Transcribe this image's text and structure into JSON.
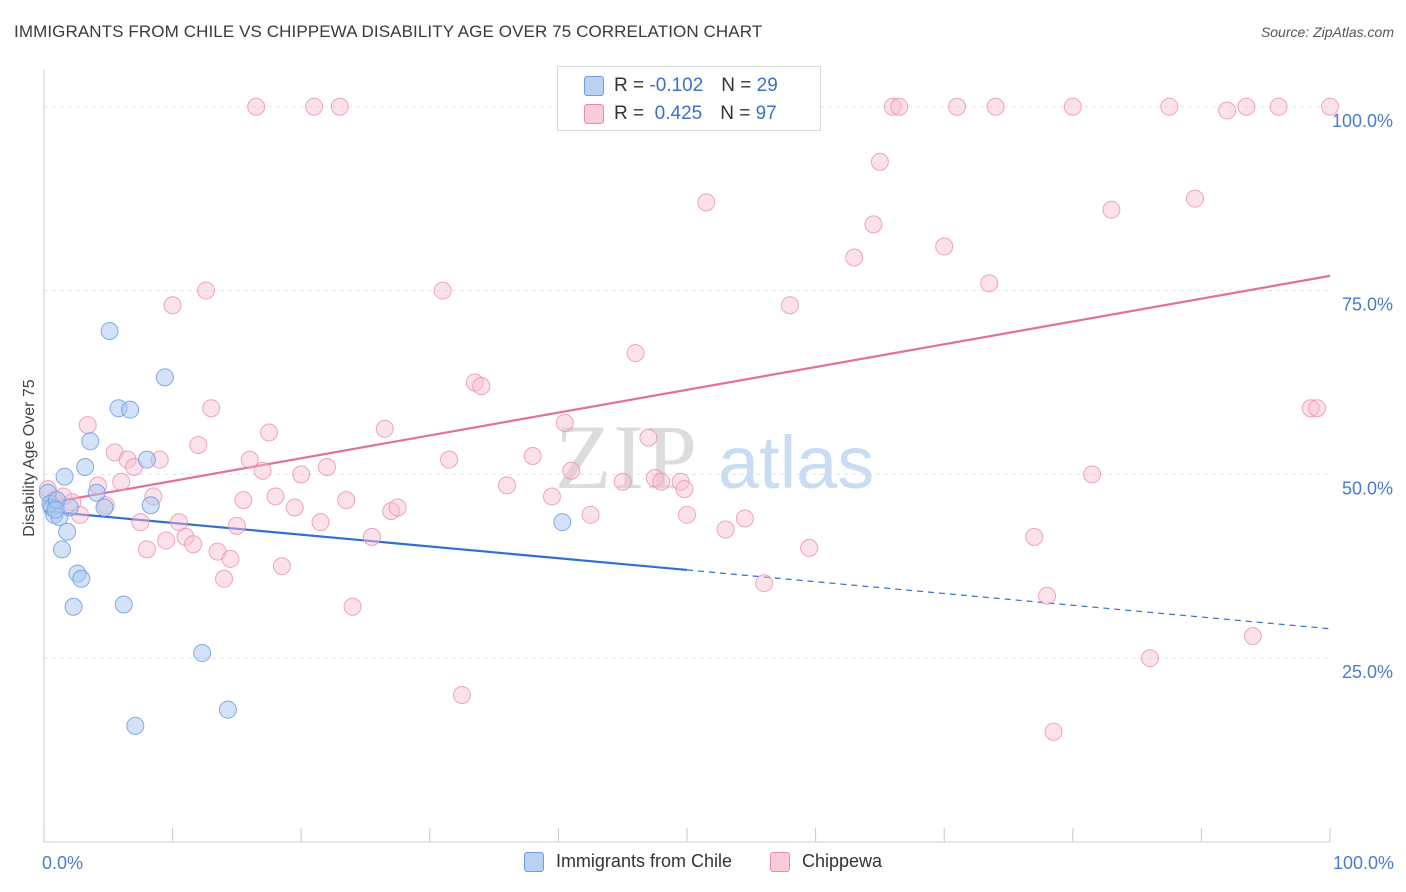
{
  "header": {
    "title": "IMMIGRANTS FROM CHILE VS CHIPPEWA DISABILITY AGE OVER 75 CORRELATION CHART",
    "source": "Source: ZipAtlas.com"
  },
  "legend": {
    "rows": [
      {
        "r_label": "R =",
        "r_value": "-0.102",
        "n_label": "N =",
        "n_value": "29"
      },
      {
        "r_label": "R =",
        "r_value": "0.425",
        "n_label": "N =",
        "n_value": "97"
      }
    ]
  },
  "bottom_legend": [
    "Immigrants from Chile",
    "Chippewa"
  ],
  "colors": {
    "blue_fill": "#a9c6f1",
    "blue_stroke": "#6e9fe0",
    "blue_line": "#2f6fd1",
    "pink_fill": "#f7bfd0",
    "pink_stroke": "#e98aa9",
    "pink_line": "#e2709a",
    "grid": "#e3e3e3",
    "axis_text": "#4a7bd0"
  },
  "chart_data": {
    "type": "scatter",
    "title": "IMMIGRANTS FROM CHILE VS CHIPPEWA DISABILITY AGE OVER 75 CORRELATION CHART",
    "xlabel": "",
    "ylabel": "Disability Age Over 75",
    "xlim": [
      0,
      100
    ],
    "ylim": [
      0,
      105
    ],
    "x_ticks": [
      "0.0%",
      "100.0%"
    ],
    "y_ticks": [
      "25.0%",
      "50.0%",
      "75.0%",
      "100.0%"
    ],
    "grid": true,
    "legend_position": "top-center",
    "series": [
      {
        "name": "Immigrants from Chile",
        "color": "#a9c6f1",
        "points": [
          [
            0.3,
            47.5
          ],
          [
            0.5,
            46
          ],
          [
            0.6,
            45.5
          ],
          [
            0.8,
            44.5
          ],
          [
            1.0,
            46.5
          ],
          [
            1.2,
            44.2
          ],
          [
            1.4,
            39.8
          ],
          [
            1.6,
            49.7
          ],
          [
            1.8,
            42.2
          ],
          [
            2.0,
            45.5
          ],
          [
            2.3,
            32.0
          ],
          [
            2.6,
            36.5
          ],
          [
            2.9,
            35.8
          ],
          [
            3.2,
            51.0
          ],
          [
            3.6,
            54.5
          ],
          [
            4.1,
            47.5
          ],
          [
            4.7,
            45.5
          ],
          [
            5.1,
            69.5
          ],
          [
            5.8,
            59.0
          ],
          [
            6.2,
            32.3
          ],
          [
            6.7,
            58.8
          ],
          [
            7.1,
            15.8
          ],
          [
            8.0,
            52.0
          ],
          [
            8.3,
            45.8
          ],
          [
            9.4,
            63.2
          ],
          [
            12.3,
            25.7
          ],
          [
            14.3,
            18.0
          ],
          [
            40.3,
            43.5
          ],
          [
            0.9,
            45.2
          ]
        ],
        "trend": {
          "x0": 0,
          "y0": 45.0,
          "x1": 50,
          "y1": 37.0,
          "dashed_to_x": 100,
          "dashed_to_y": 29.0
        }
      },
      {
        "name": "Chippewa",
        "color": "#f7bfd0",
        "points": [
          [
            0.3,
            48.0
          ],
          [
            0.8,
            46.5
          ],
          [
            1.5,
            47.0
          ],
          [
            2.2,
            46.2
          ],
          [
            2.8,
            44.5
          ],
          [
            3.4,
            56.7
          ],
          [
            4.2,
            48.5
          ],
          [
            4.8,
            45.8
          ],
          [
            5.5,
            53.0
          ],
          [
            6.0,
            49.0
          ],
          [
            6.5,
            52.0
          ],
          [
            7.0,
            51.0
          ],
          [
            7.5,
            43.5
          ],
          [
            8.0,
            39.8
          ],
          [
            8.5,
            47.0
          ],
          [
            9.0,
            52.0
          ],
          [
            9.5,
            41.0
          ],
          [
            10.0,
            73.0
          ],
          [
            10.5,
            43.5
          ],
          [
            11.0,
            41.5
          ],
          [
            11.6,
            40.5
          ],
          [
            12.0,
            54.0
          ],
          [
            12.6,
            75.0
          ],
          [
            13.0,
            59.0
          ],
          [
            13.5,
            39.5
          ],
          [
            14.0,
            35.8
          ],
          [
            14.5,
            38.5
          ],
          [
            15.0,
            43.0
          ],
          [
            15.5,
            46.5
          ],
          [
            16.0,
            52.0
          ],
          [
            16.5,
            100
          ],
          [
            17.0,
            50.5
          ],
          [
            17.5,
            55.7
          ],
          [
            18.0,
            47.0
          ],
          [
            18.5,
            37.5
          ],
          [
            19.5,
            45.5
          ],
          [
            20.0,
            50.0
          ],
          [
            21.0,
            100
          ],
          [
            21.5,
            43.5
          ],
          [
            22.0,
            51.0
          ],
          [
            23.0,
            100
          ],
          [
            23.5,
            46.5
          ],
          [
            24.0,
            32.0
          ],
          [
            25.5,
            41.5
          ],
          [
            26.5,
            56.2
          ],
          [
            27.0,
            45.0
          ],
          [
            27.5,
            45.5
          ],
          [
            31.0,
            75.0
          ],
          [
            31.5,
            52.0
          ],
          [
            32.5,
            20.0
          ],
          [
            33.5,
            62.5
          ],
          [
            34.0,
            62.0
          ],
          [
            38.0,
            52.5
          ],
          [
            39.5,
            47.0
          ],
          [
            40.5,
            57.0
          ],
          [
            41.0,
            50.5
          ],
          [
            42.5,
            44.5
          ],
          [
            45.0,
            49.0
          ],
          [
            46.0,
            66.5
          ],
          [
            47.0,
            55.0
          ],
          [
            47.5,
            49.5
          ],
          [
            48.0,
            49.0
          ],
          [
            49.5,
            49.0
          ],
          [
            49.8,
            48.0
          ],
          [
            50.0,
            44.5
          ],
          [
            51.5,
            87.0
          ],
          [
            53.0,
            42.5
          ],
          [
            54.5,
            44.0
          ],
          [
            56.0,
            35.2
          ],
          [
            58.0,
            73.0
          ],
          [
            59.5,
            40.0
          ],
          [
            63.0,
            79.5
          ],
          [
            64.5,
            84.0
          ],
          [
            65.0,
            92.5
          ],
          [
            66.0,
            100
          ],
          [
            66.5,
            100
          ],
          [
            70.0,
            81.0
          ],
          [
            71.0,
            100
          ],
          [
            73.5,
            76.0
          ],
          [
            74.0,
            100
          ],
          [
            77.0,
            41.5
          ],
          [
            78.0,
            33.5
          ],
          [
            80.0,
            100
          ],
          [
            81.5,
            50.0
          ],
          [
            83.0,
            86.0
          ],
          [
            86.0,
            25.0
          ],
          [
            87.5,
            100
          ],
          [
            89.5,
            87.5
          ],
          [
            92.0,
            99.5
          ],
          [
            93.5,
            100
          ],
          [
            94.0,
            28.0
          ],
          [
            96.0,
            100
          ],
          [
            98.5,
            59.0
          ],
          [
            99.0,
            59.0
          ],
          [
            100,
            100
          ],
          [
            78.5,
            15.0
          ],
          [
            36.0,
            48.5
          ]
        ],
        "trend": {
          "x0": 0,
          "y0": 46.0,
          "x1": 100,
          "y1": 77.0
        }
      }
    ]
  }
}
